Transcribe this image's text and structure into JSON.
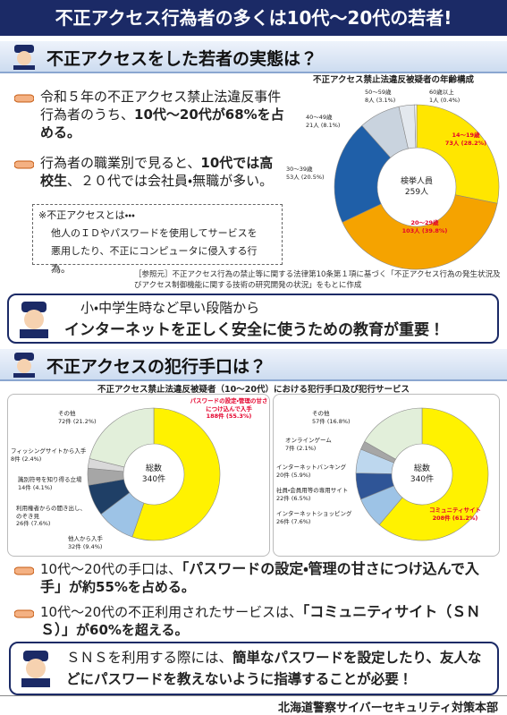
{
  "header": {
    "title": "不正アクセス行為者の多くは10代～20代の若者!"
  },
  "section1": {
    "title": "不正アクセスをした若者の実態は？",
    "bullet1": [
      "令和５年の不正アクセス禁止法違反事件行為者のうち、",
      "10代～20代が68%を占める。"
    ],
    "bullet2": [
      "行為者の職業別で見ると、",
      "10代では高校生",
      "、２０代では会社員・無職が多い。"
    ],
    "note": [
      "※不正アクセスとは・・・",
      "他人のＩＤやパスワードを使用してサービスを",
      "悪用したり、不正にコンピュータに侵入する行為。"
    ],
    "reference": "［参照元］不正アクセス行為の禁止等に関する法律第10条第１項に基づく「不正アクセス行為の発生状況及びアクセス制御機能に関する技術の研究開発の状況」をもとに作成",
    "callout": [
      "小・中学生時など早い段階から",
      "インターネットを正しく安全に使うための教育が重要！"
    ]
  },
  "section2": {
    "title": "不正アクセスの犯行手口は？",
    "chart_caption": "不正アクセス禁止法違反被疑者（10～20代）における犯行手口及び犯行サービス",
    "bullet3": [
      "10代～20代の手口は、",
      "「パスワードの設定・管理の甘さにつけ込んで入手」",
      "が約55%を占める。"
    ],
    "bullet4": [
      "10代～20代の不正利用されたサービスは、",
      "「コミュニティサイト（ＳＮＳ）」",
      "が60%を超える。"
    ],
    "callout": [
      "ＳＮＳを利用する際には、",
      "簡単なパスワードを設定したり、友人などにパスワードを教えないように指導することが必要！"
    ]
  },
  "footer": {
    "text": "北海道警察サイバーセキュリティ対策本部"
  },
  "chart_data": [
    {
      "type": "donut",
      "title": "不正アクセス禁止法違反被疑者の年齢構成",
      "center_title": "検挙人員",
      "center_total": "259人",
      "categories": [
        "14～19歳",
        "20～29歳",
        "30～39歳",
        "40～49歳",
        "50～59歳",
        "60歳以上"
      ],
      "values": [
        73,
        103,
        53,
        21,
        8,
        1
      ],
      "value_labels": [
        "73人 (28.2%)",
        "103人 (39.8%)",
        "53人 (20.5%)",
        "21人 (8.1%)",
        "8人 (3.1%)",
        "1人 (0.4%)"
      ],
      "colors": [
        "#ffe600",
        "#f5a300",
        "#1f5fa8",
        "#c9d3de",
        "#e3e8ee",
        "#ffffff"
      ]
    },
    {
      "type": "donut",
      "center_title": "総数",
      "center_total": "340件",
      "categories": [
        "パスワードの設定・管理の甘さにつけ込んで入手",
        "他人から入手",
        "利用権者からの聞き出し、のぞき見",
        "識別符号を知り得る立場",
        "フィッシングサイトから入手",
        "その他"
      ],
      "values": [
        188,
        32,
        26,
        14,
        8,
        72
      ],
      "value_labels": [
        "188件 (55.3%)",
        "32件 (9.4%)",
        "26件 (7.6%)",
        "14件 (4.1%)",
        "8件 (2.4%)",
        "72件 (21.2%)"
      ],
      "colors": [
        "#fff200",
        "#9dc3e6",
        "#1f3f66",
        "#a6a6a6",
        "#d9d9d9",
        "#e2efda"
      ]
    },
    {
      "type": "donut",
      "center_title": "総数",
      "center_total": "340件",
      "categories": [
        "コミュニティサイト",
        "インターネットショッピング",
        "社員・会員用等の専用サイト",
        "インターネットバンキング",
        "オンラインゲーム",
        "その他"
      ],
      "values": [
        208,
        26,
        22,
        20,
        7,
        57
      ],
      "value_labels": [
        "208件 (61.2%)",
        "26件 (7.6%)",
        "22件 (6.5%)",
        "20件 (5.9%)",
        "7件 (2.1%)",
        "57件 (16.8%)"
      ],
      "colors": [
        "#fff200",
        "#9dc3e6",
        "#2f5597",
        "#bdd7ee",
        "#a6a6a6",
        "#e2efda"
      ]
    }
  ]
}
